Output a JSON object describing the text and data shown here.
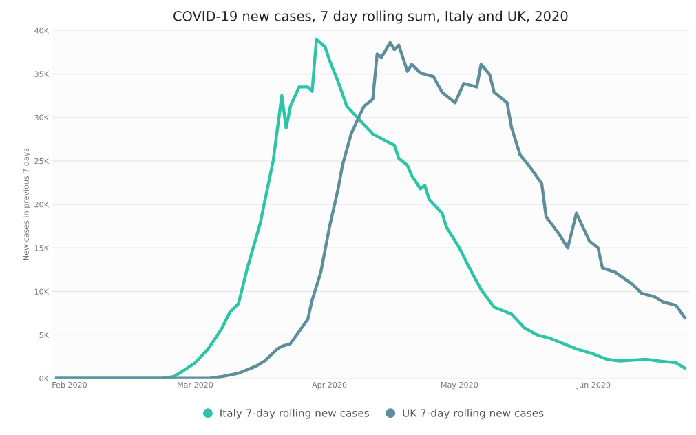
{
  "chart_data": {
    "type": "line",
    "title": "COVID-19 new cases, 7 day rolling sum, Italy and UK, 2020",
    "ylabel": "New cases in previous 7 days",
    "xlim": [
      "2020-01-28",
      "2020-06-23"
    ],
    "xticks": [
      {
        "value": "2020-02-01",
        "label": "Feb 2020"
      },
      {
        "value": "2020-03-01",
        "label": "Mar 2020"
      },
      {
        "value": "2020-04-01",
        "label": "Apr 2020"
      },
      {
        "value": "2020-05-01",
        "label": "May 2020"
      },
      {
        "value": "2020-06-01",
        "label": "Jun 2020"
      }
    ],
    "ylim": [
      0,
      40000
    ],
    "yticks": [
      {
        "value": 0,
        "label": "0K"
      },
      {
        "value": 5000,
        "label": "5K"
      },
      {
        "value": 10000,
        "label": "10K"
      },
      {
        "value": 15000,
        "label": "15K"
      },
      {
        "value": 20000,
        "label": "20K"
      },
      {
        "value": 25000,
        "label": "25K"
      },
      {
        "value": 30000,
        "label": "30K"
      },
      {
        "value": 35000,
        "label": "35K"
      },
      {
        "value": 40000,
        "label": "40K"
      }
    ],
    "grid": "y",
    "legend": "bottom",
    "marker": "none",
    "line_style": "solid",
    "series": [
      {
        "name": "Italy 7-day rolling new cases",
        "color": "#2ec4a8",
        "x": [
          "2020-01-29",
          "2020-02-22",
          "2020-02-25",
          "2020-02-27",
          "2020-03-01",
          "2020-03-04",
          "2020-03-07",
          "2020-03-09",
          "2020-03-11",
          "2020-03-13",
          "2020-03-16",
          "2020-03-17",
          "2020-03-19",
          "2020-03-21",
          "2020-03-22",
          "2020-03-23",
          "2020-03-25",
          "2020-03-27",
          "2020-03-28",
          "2020-03-29",
          "2020-03-31",
          "2020-04-01",
          "2020-04-03",
          "2020-04-05",
          "2020-04-08",
          "2020-04-11",
          "2020-04-14",
          "2020-04-16",
          "2020-04-17",
          "2020-04-19",
          "2020-04-20",
          "2020-04-22",
          "2020-04-23",
          "2020-04-24",
          "2020-04-27",
          "2020-04-28",
          "2020-05-01",
          "2020-05-03",
          "2020-05-06",
          "2020-05-09",
          "2020-05-11",
          "2020-05-13",
          "2020-05-16",
          "2020-05-19",
          "2020-05-22",
          "2020-05-25",
          "2020-05-28",
          "2020-06-01",
          "2020-06-04",
          "2020-06-07",
          "2020-06-10",
          "2020-06-13",
          "2020-06-16",
          "2020-06-20",
          "2020-06-22"
        ],
        "values": [
          0,
          0,
          200,
          800,
          1800,
          3400,
          5600,
          7600,
          8600,
          12600,
          17800,
          20200,
          25000,
          32500,
          28800,
          31300,
          33500,
          33500,
          33000,
          39000,
          38100,
          36600,
          34100,
          31300,
          29700,
          28100,
          27300,
          26800,
          25300,
          24500,
          23300,
          21800,
          22200,
          20600,
          19000,
          17400,
          15000,
          13000,
          10200,
          8200,
          7800,
          7400,
          5800,
          5000,
          4600,
          4000,
          3400,
          2800,
          2200,
          2000,
          2100,
          2200,
          2000,
          1800,
          1200
        ]
      },
      {
        "name": "UK 7-day rolling new cases",
        "color": "#5e8e9c",
        "x": [
          "2020-01-29",
          "2020-03-04",
          "2020-03-07",
          "2020-03-11",
          "2020-03-15",
          "2020-03-17",
          "2020-03-20",
          "2020-03-21",
          "2020-03-23",
          "2020-03-25",
          "2020-03-27",
          "2020-03-28",
          "2020-03-30",
          "2020-04-01",
          "2020-04-03",
          "2020-04-04",
          "2020-04-06",
          "2020-04-08",
          "2020-04-09",
          "2020-04-11",
          "2020-04-12",
          "2020-04-13",
          "2020-04-15",
          "2020-04-16",
          "2020-04-17",
          "2020-04-19",
          "2020-04-20",
          "2020-04-22",
          "2020-04-25",
          "2020-04-27",
          "2020-04-30",
          "2020-05-02",
          "2020-05-05",
          "2020-05-06",
          "2020-05-08",
          "2020-05-09",
          "2020-05-12",
          "2020-05-13",
          "2020-05-15",
          "2020-05-17",
          "2020-05-20",
          "2020-05-21",
          "2020-05-24",
          "2020-05-26",
          "2020-05-28",
          "2020-05-31",
          "2020-06-02",
          "2020-06-03",
          "2020-06-06",
          "2020-06-10",
          "2020-06-12",
          "2020-06-15",
          "2020-06-17",
          "2020-06-20",
          "2020-06-22"
        ],
        "values": [
          0,
          0,
          200,
          600,
          1400,
          2000,
          3400,
          3700,
          4000,
          5400,
          6800,
          9000,
          12200,
          17400,
          21800,
          24500,
          28100,
          30300,
          31300,
          32100,
          37300,
          36900,
          38600,
          37800,
          38300,
          35300,
          36100,
          35100,
          34700,
          32900,
          31700,
          33900,
          33500,
          36100,
          34900,
          32900,
          31700,
          28900,
          25700,
          24500,
          22400,
          18600,
          16600,
          15000,
          19000,
          15800,
          15000,
          12700,
          12200,
          10800,
          9800,
          9400,
          8800,
          8400,
          7000
        ]
      }
    ]
  }
}
